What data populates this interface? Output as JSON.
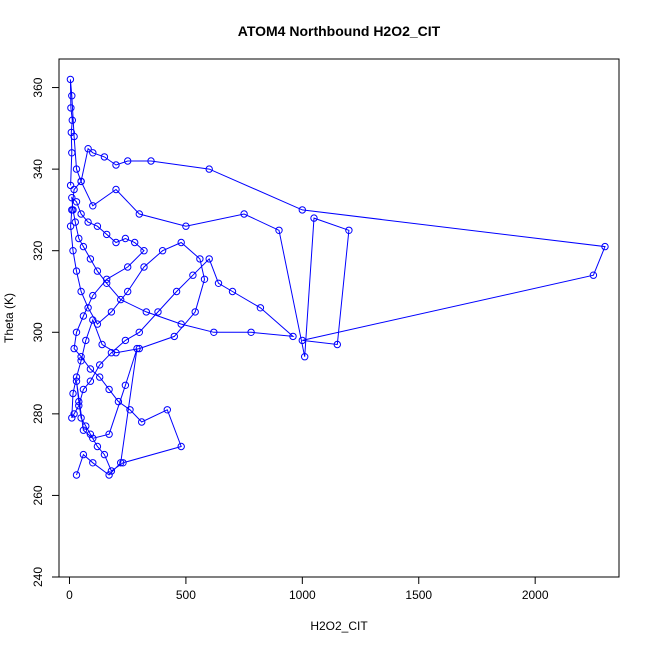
{
  "chart_data": {
    "type": "line",
    "title": "ATOM4 Northbound H2O2_CIT",
    "xlabel": "H2O2_CIT",
    "ylabel": "Theta (K)",
    "xlim": [
      -45,
      2360
    ],
    "ylim": [
      240,
      367
    ],
    "xticks": [
      0,
      500,
      1000,
      1500,
      2000
    ],
    "yticks": [
      240,
      260,
      280,
      300,
      320,
      340,
      360
    ],
    "grid": false,
    "legend": "none",
    "series_color": "#0000ff",
    "series": [
      {
        "x": [
          5,
          10,
          8,
          12,
          6,
          4,
          10,
          20,
          30,
          50,
          80,
          100,
          150,
          200,
          250,
          350,
          600,
          1000,
          2300,
          2250,
          1000,
          1150,
          1200,
          1050,
          1010,
          900,
          750,
          500,
          300,
          200,
          100,
          50,
          20,
          10,
          5,
          15,
          30,
          50,
          80,
          120,
          180,
          250,
          320,
          400,
          480,
          560,
          580,
          540,
          450,
          300,
          200,
          140,
          100,
          70,
          50,
          30,
          15,
          10,
          20,
          40,
          60,
          90,
          130,
          180,
          240,
          300,
          380,
          460,
          530,
          600,
          640,
          700,
          820,
          960,
          780,
          620,
          480,
          330,
          220,
          160,
          120,
          90,
          60,
          40,
          25,
          15,
          10,
          30,
          50,
          80,
          120,
          160,
          200,
          240,
          280,
          320,
          250,
          160,
          100,
          60,
          30,
          20,
          50,
          90,
          130,
          170,
          210,
          260,
          310,
          420,
          480,
          230,
          180,
          150,
          120,
          90,
          70,
          50,
          40,
          30,
          60,
          100,
          170,
          240,
          290,
          220,
          170,
          100,
          60,
          30
        ],
        "y": [
          336,
          344,
          349,
          352,
          355,
          362,
          358,
          348,
          340,
          337,
          345,
          344,
          343,
          341,
          342,
          342,
          340,
          330,
          321,
          314,
          298,
          297,
          325,
          328,
          294,
          325,
          329,
          326,
          329,
          335,
          331,
          337,
          335,
          330,
          326,
          320,
          315,
          310,
          306,
          302,
          305,
          310,
          316,
          320,
          322,
          318,
          313,
          305,
          299,
          296,
          295,
          297,
          303,
          298,
          293,
          289,
          285,
          279,
          280,
          282,
          286,
          288,
          292,
          295,
          298,
          300,
          305,
          310,
          314,
          318,
          312,
          310,
          306,
          299,
          300,
          300,
          302,
          305,
          308,
          312,
          315,
          318,
          321,
          323,
          327,
          330,
          333,
          332,
          329,
          327,
          326,
          324,
          322,
          323,
          322,
          320,
          316,
          313,
          309,
          304,
          300,
          296,
          294,
          291,
          289,
          286,
          283,
          281,
          278,
          281,
          272,
          268,
          266,
          270,
          272,
          275,
          277,
          279,
          283,
          288,
          276,
          274,
          275,
          287,
          296,
          268,
          265,
          268,
          270,
          265
        ]
      }
    ]
  }
}
